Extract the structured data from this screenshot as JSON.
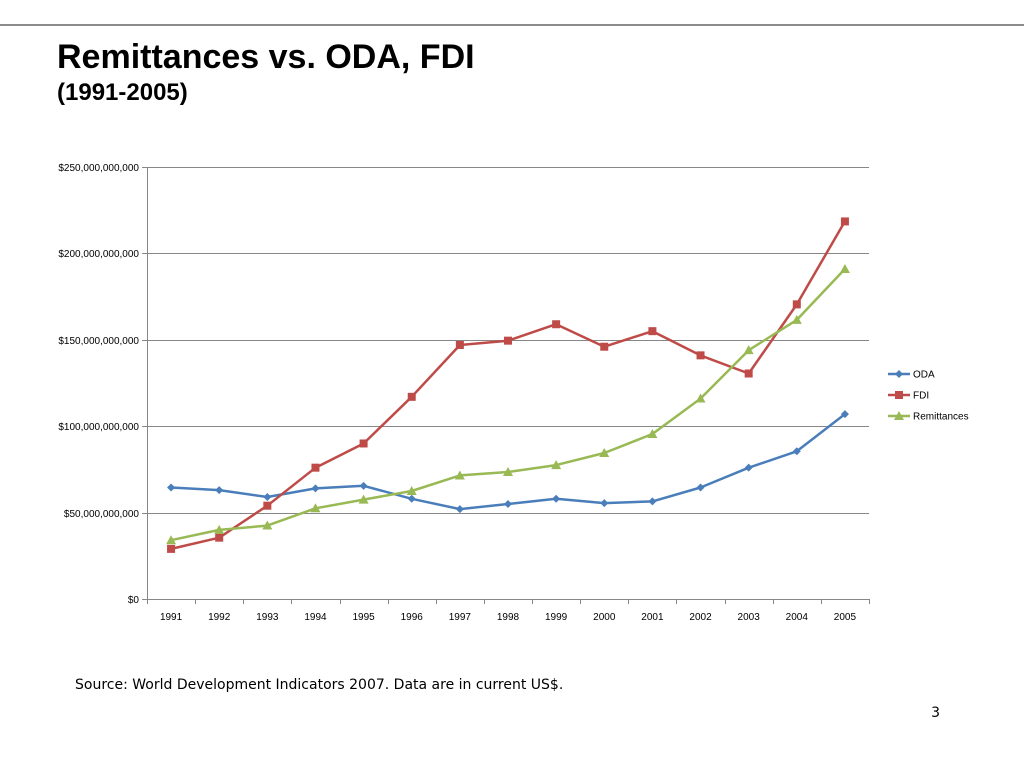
{
  "slide": {
    "title": "Remittances vs. ODA, FDI",
    "subtitle": "(1991-2005)",
    "source": "Source: World Development Indicators 2007. Data are in current US$.",
    "page_number": "3"
  },
  "chart_data": {
    "type": "line",
    "x": [
      "1991",
      "1992",
      "1993",
      "1994",
      "1995",
      "1996",
      "1997",
      "1998",
      "1999",
      "2000",
      "2001",
      "2002",
      "2003",
      "2004",
      "2005"
    ],
    "ylim": [
      0,
      250000000000
    ],
    "y_ticks": [
      0,
      50000000000,
      100000000000,
      150000000000,
      200000000000,
      250000000000
    ],
    "y_tick_labels": [
      "$0",
      "$50,000,000,000",
      "$100,000,000,000",
      "$150,000,000,000",
      "$200,000,000,000",
      "$250,000,000,000"
    ],
    "grid": "horizontal",
    "legend_position": "right",
    "series": [
      {
        "name": "ODA",
        "color": "#4a7ebb",
        "marker": "diamond",
        "values": [
          64500000000,
          63000000000,
          59000000000,
          64000000000,
          65500000000,
          58000000000,
          52000000000,
          55000000000,
          58000000000,
          55500000000,
          56500000000,
          64500000000,
          76000000000,
          85500000000,
          107000000000
        ]
      },
      {
        "name": "FDI",
        "color": "#be4b48",
        "marker": "square",
        "values": [
          29000000000,
          35500000000,
          54000000000,
          76000000000,
          90000000000,
          117000000000,
          147000000000,
          149500000000,
          159000000000,
          146000000000,
          155000000000,
          141000000000,
          130500000000,
          170500000000,
          218500000000
        ]
      },
      {
        "name": "Remittances",
        "color": "#98b954",
        "marker": "triangle",
        "values": [
          34000000000,
          40000000000,
          42500000000,
          52500000000,
          57500000000,
          62500000000,
          71500000000,
          73500000000,
          77500000000,
          84500000000,
          95500000000,
          116000000000,
          144000000000,
          161500000000,
          191000000000
        ]
      }
    ]
  }
}
